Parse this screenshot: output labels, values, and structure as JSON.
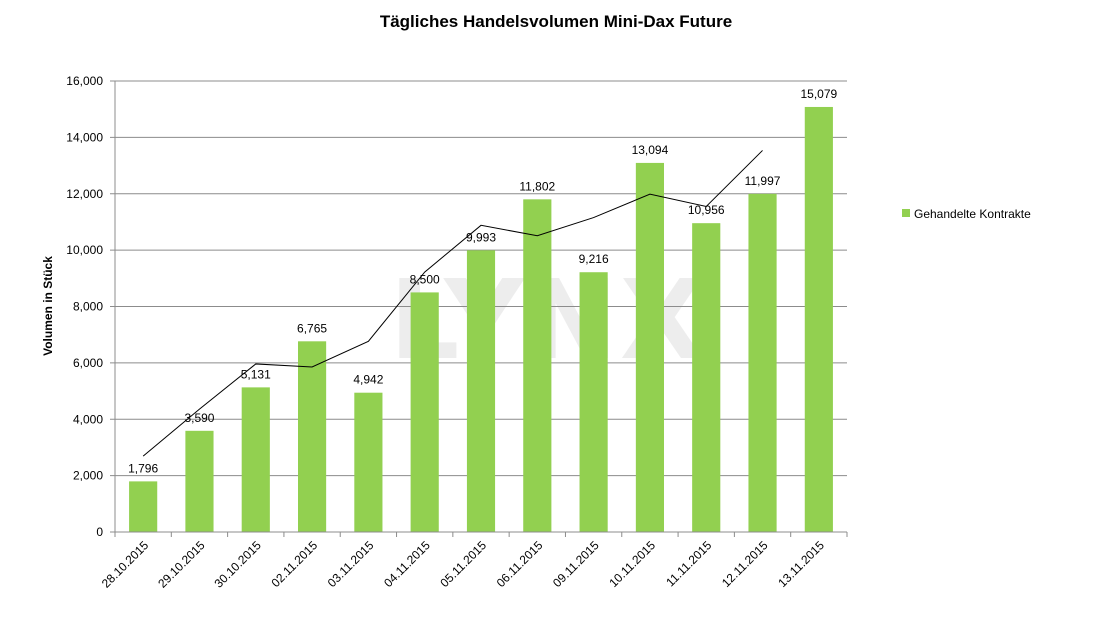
{
  "chart_data": {
    "type": "bar",
    "title": "Tägliches Handelsvolumen Mini-Dax Future",
    "xlabel": "",
    "ylabel": "Volumen in Stück",
    "ylim": [
      0,
      16000
    ],
    "yticks": [
      0,
      2000,
      4000,
      6000,
      8000,
      10000,
      12000,
      14000,
      16000
    ],
    "ytick_labels": [
      "0",
      "2,000",
      "4,000",
      "6,000",
      "8,000",
      "10,000",
      "12,000",
      "14,000",
      "16,000"
    ],
    "grid": true,
    "legend_position": "right",
    "categories": [
      "28.10.2015",
      "29.10.2015",
      "30.10.2015",
      "02.11.2015",
      "03.11.2015",
      "04.11.2015",
      "05.11.2015",
      "06.11.2015",
      "09.11.2015",
      "10.11.2015",
      "11.11.2015",
      "12.11.2015",
      "13.11.2015"
    ],
    "series": [
      {
        "name": "Gehandelte Kontrakte",
        "color": "#92d050",
        "values": [
          1796,
          3590,
          5131,
          6765,
          4942,
          8500,
          9993,
          11802,
          9216,
          13094,
          10956,
          11997,
          15079
        ],
        "data_labels": [
          "1,796",
          "3,590",
          "5,131",
          "6,765",
          "4,942",
          "8,500",
          "9,993",
          "11,802",
          "9,216",
          "13,094",
          "10,956",
          "11,997",
          "15,079"
        ]
      }
    ],
    "trendline": {
      "color": "#000000",
      "values": [
        2693,
        4361,
        5962,
        5854,
        6766,
        9221,
        10880,
        10510,
        11155,
        11986,
        11550,
        13536
      ]
    },
    "watermark": "LYNX"
  }
}
